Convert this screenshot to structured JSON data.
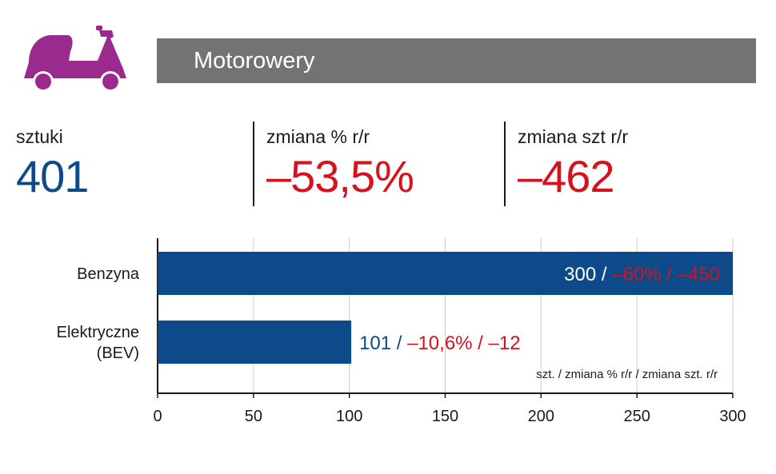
{
  "header": {
    "title": "Motorowery",
    "icon": "scooter-icon",
    "icon_color": "#9b2a8e",
    "bar_color": "#717375"
  },
  "stats": [
    {
      "label": "sztuki",
      "value": "401",
      "color": "#0c4a8a"
    },
    {
      "label": "zmiana % r/r",
      "value": "–53,5%",
      "color": "#d5121e"
    },
    {
      "label": "zmiana szt r/r",
      "value": "–462",
      "color": "#d5121e"
    }
  ],
  "chart_data": {
    "type": "bar",
    "orientation": "horizontal",
    "categories": [
      [
        "Benzyna"
      ],
      [
        "Elektryczne",
        "(BEV)"
      ]
    ],
    "values": [
      300,
      101
    ],
    "data_labels": [
      {
        "value": "300",
        "sep": " / ",
        "changes": "–60% / –450"
      },
      {
        "value": "101",
        "sep": " / ",
        "changes": "–10,6% / –12"
      }
    ],
    "xlim": [
      0,
      300
    ],
    "ticks": [
      0,
      50,
      100,
      150,
      200,
      250,
      300
    ],
    "grid": true,
    "note": "szt. / zmiana % r/r / zmiana szt. r/r",
    "colors": {
      "bar": "#0c4a8a",
      "value": "#0c4a8a",
      "change": "#d5121e",
      "grid": "#cccccc",
      "axis": "#1a1a1a"
    }
  }
}
